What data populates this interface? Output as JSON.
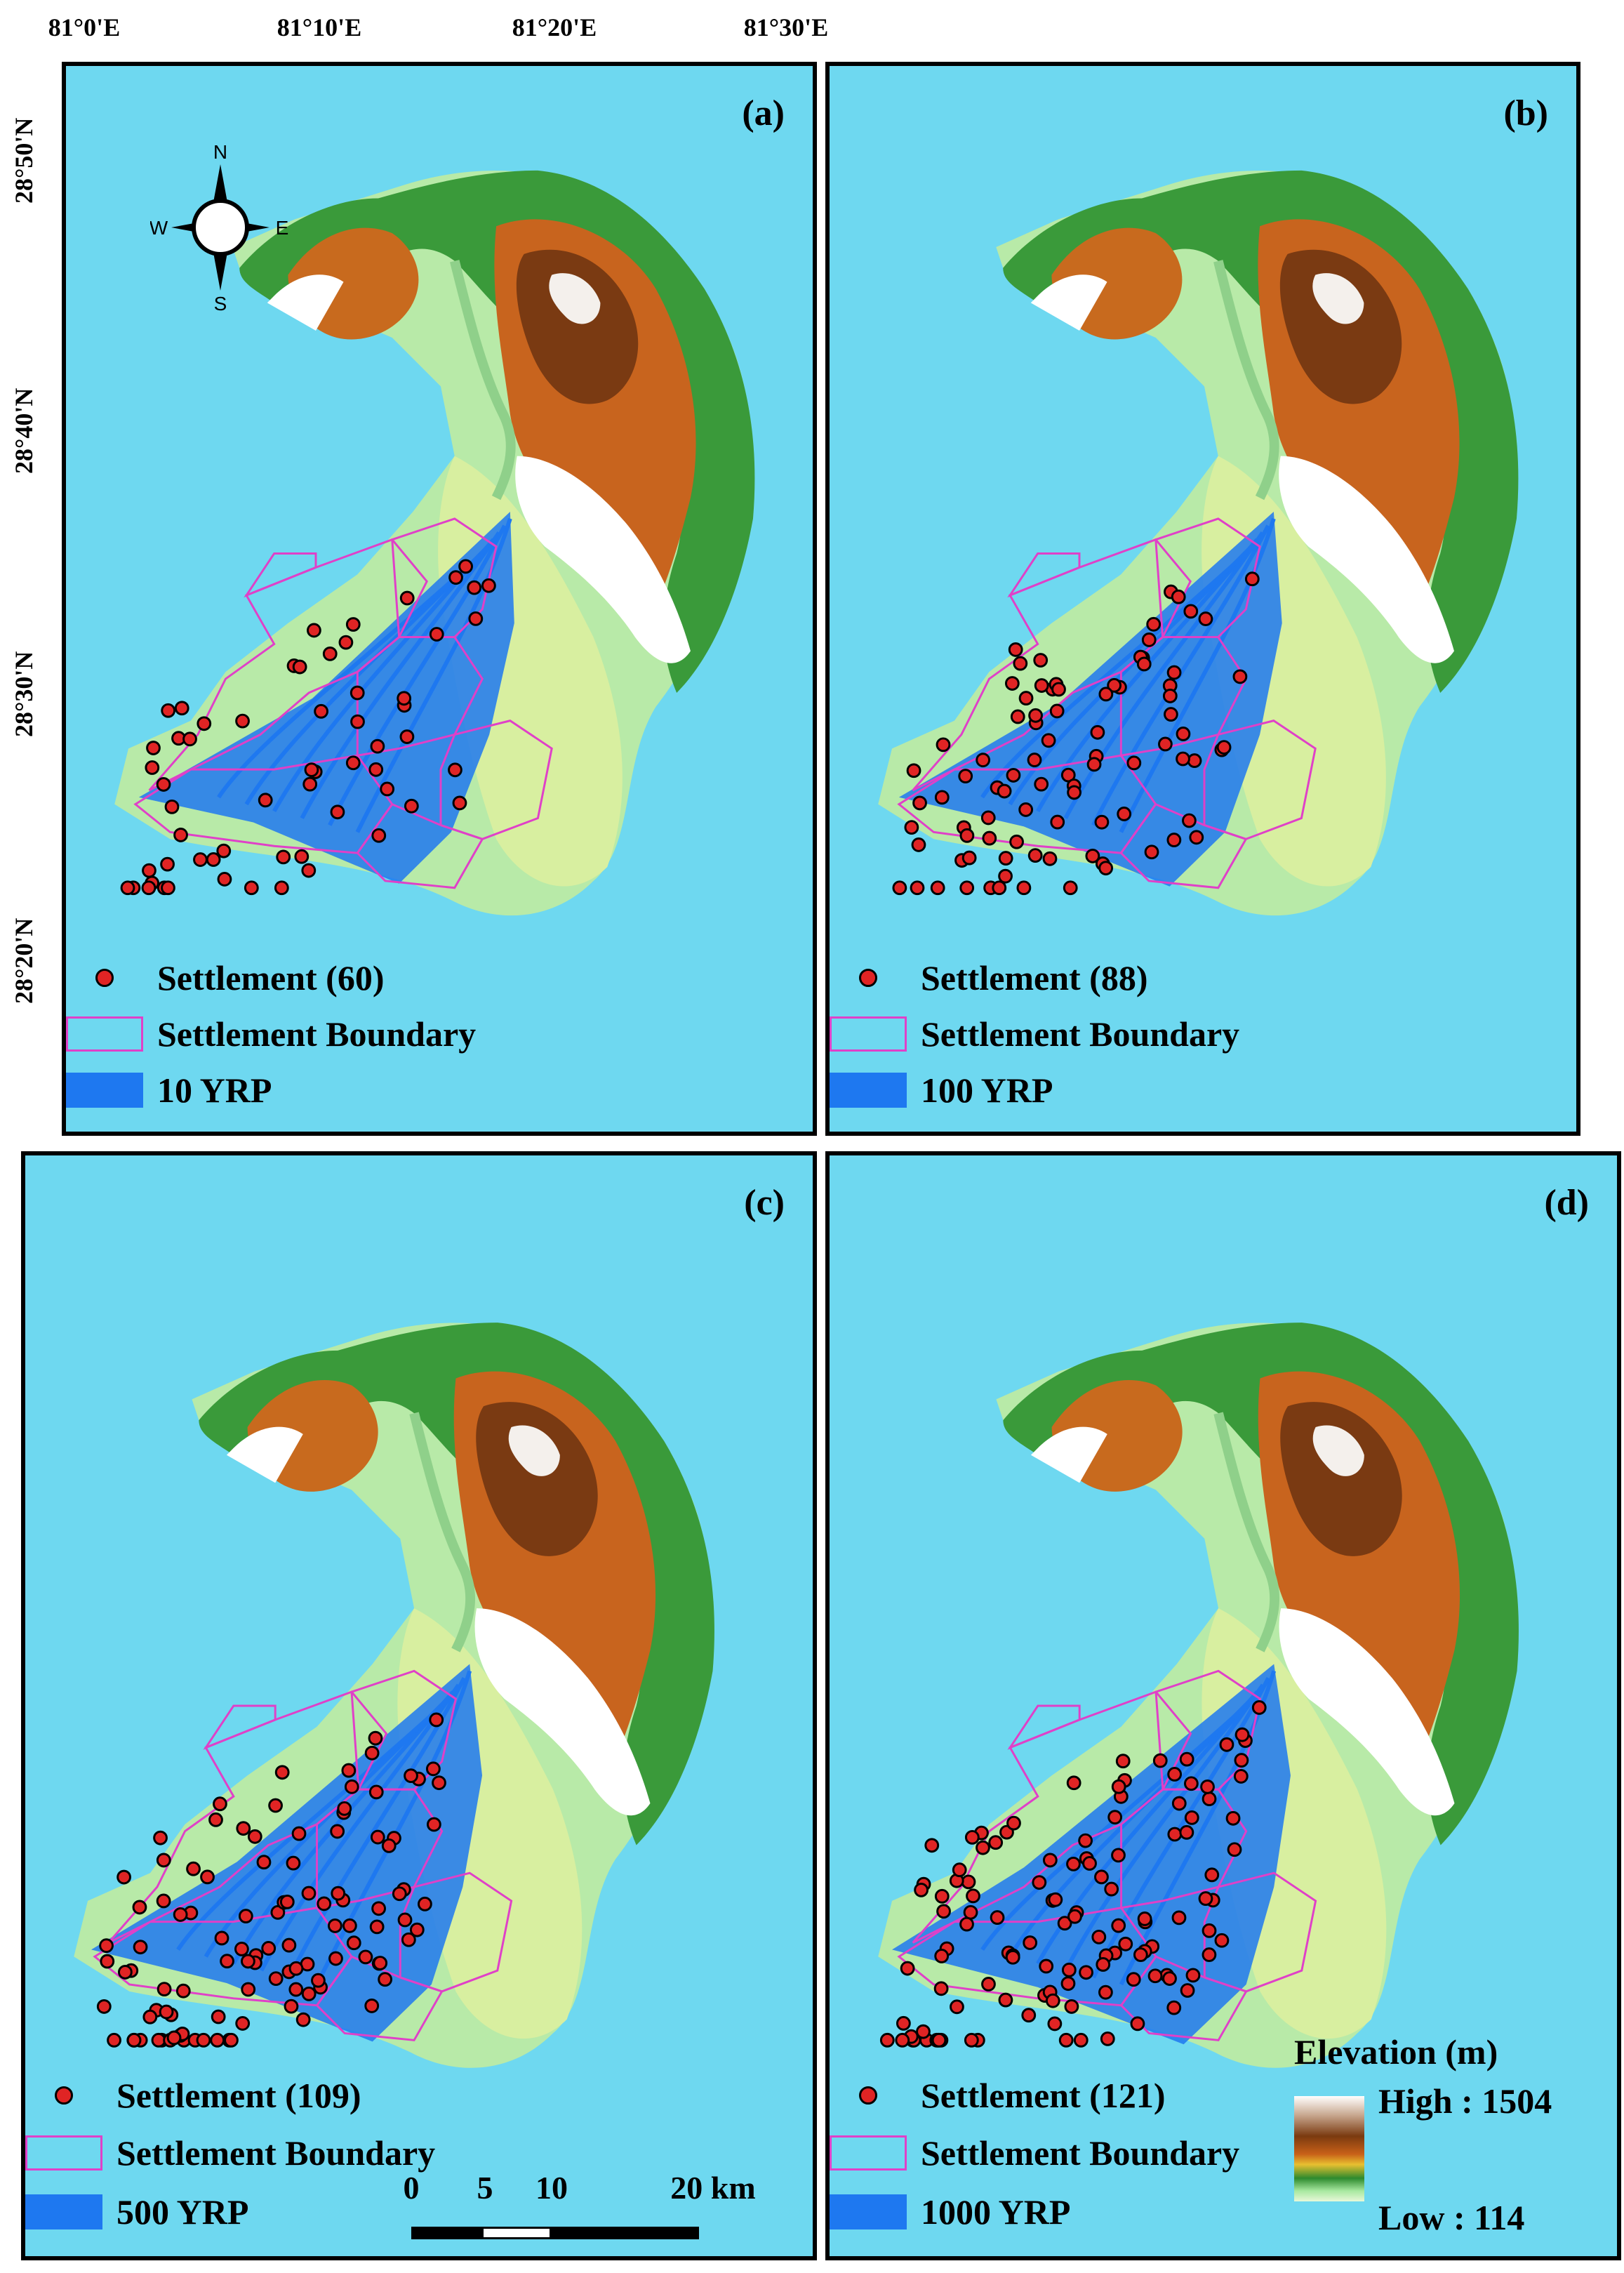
{
  "axes": {
    "lon_ticks": [
      "81°0'E",
      "81°10'E",
      "81°20'E",
      "81°30'E"
    ],
    "lat_ticks": [
      "28°50'N",
      "28°40'N",
      "28°30'N",
      "28°20'N"
    ]
  },
  "compass": {
    "n": "N",
    "s": "S",
    "e": "E",
    "w": "W"
  },
  "legend": {
    "boundary_label": "Settlement Boundary"
  },
  "panels": [
    {
      "label": "(a)",
      "settlement_label": "Settlement (60)",
      "settlement_count": 60,
      "flood_label": "10 YRP",
      "flood_extent": 1
    },
    {
      "label": "(b)",
      "settlement_label": "Settlement (88)",
      "settlement_count": 88,
      "flood_label": "100 YRP",
      "flood_extent": 2
    },
    {
      "label": "(c)",
      "settlement_label": "Settlement (109)",
      "settlement_count": 109,
      "flood_label": "500 YRP",
      "flood_extent": 3
    },
    {
      "label": "(d)",
      "settlement_label": "Settlement (121)",
      "settlement_count": 121,
      "flood_label": "1000 YRP",
      "flood_extent": 4
    }
  ],
  "scale_bar": {
    "ticks": [
      "0",
      "5",
      "10",
      "20 km"
    ]
  },
  "elevation": {
    "title": "Elevation (m)",
    "high": "High : 1504",
    "low": "Low : 114"
  },
  "colors": {
    "water": "#6ed8f0",
    "flood": "#1e78f0",
    "boundary": "#e040c8",
    "settlement": "#e02424"
  }
}
